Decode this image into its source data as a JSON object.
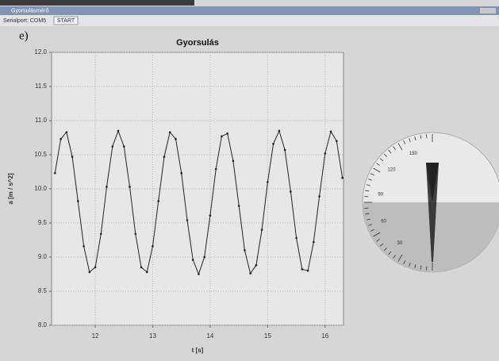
{
  "window": {
    "title": "Gyorsulásmérő",
    "toolbar": {
      "port": "Serialport: COM5",
      "button": "START"
    },
    "panel_label": "e)"
  },
  "chart_data": {
    "type": "line",
    "title": "Gyorsulás",
    "x_label": "t [s]",
    "y_label": "a [m / s^2]",
    "x": [
      11.3,
      11.4,
      11.5,
      11.6,
      11.7,
      11.8,
      11.9,
      12.0,
      12.1,
      12.2,
      12.3,
      12.4,
      12.5,
      12.6,
      12.7,
      12.8,
      12.9,
      13.0,
      13.1,
      13.2,
      13.3,
      13.4,
      13.5,
      13.6,
      13.7,
      13.8,
      13.9,
      14.0,
      14.1,
      14.2,
      14.3,
      14.4,
      14.5,
      14.6,
      14.7,
      14.8,
      14.9,
      15.0,
      15.1,
      15.2,
      15.3,
      15.4,
      15.5,
      15.6,
      15.7,
      15.8,
      15.9,
      16.0,
      16.1,
      16.2,
      16.3
    ],
    "series": [
      {
        "name": "a",
        "color": "#222222",
        "values": [
          10.23,
          10.73,
          10.83,
          10.47,
          9.82,
          9.16,
          8.78,
          8.85,
          9.34,
          10.03,
          10.62,
          10.85,
          10.62,
          10.03,
          9.34,
          8.85,
          8.78,
          9.16,
          9.82,
          10.47,
          10.83,
          10.73,
          10.23,
          9.54,
          8.96,
          8.75,
          9.0,
          9.61,
          10.29,
          10.77,
          10.81,
          10.41,
          9.75,
          9.1,
          8.76,
          8.88,
          9.4,
          10.1,
          10.66,
          10.85,
          10.57,
          9.96,
          9.28,
          8.82,
          8.8,
          9.22,
          9.89,
          10.52,
          10.84,
          10.7,
          10.16
        ]
      }
    ],
    "xlim": [
      11.24,
      16.32
    ],
    "xticks": [
      12,
      13,
      14,
      15,
      16
    ],
    "ylim": [
      8,
      12
    ],
    "yticks": [
      {
        "value": 8,
        "label": "8.0"
      },
      8.5,
      {
        "value": 9,
        "label": "9.0"
      },
      9.5,
      {
        "value": 10,
        "label": "10.0"
      },
      10.5,
      {
        "value": 11,
        "label": "11.0"
      },
      11.5,
      {
        "value": 12,
        "label": "12.0"
      }
    ],
    "grid": true
  },
  "gauge": {
    "labels": [
      "150",
      "120",
      "90",
      "60",
      "30"
    ]
  }
}
